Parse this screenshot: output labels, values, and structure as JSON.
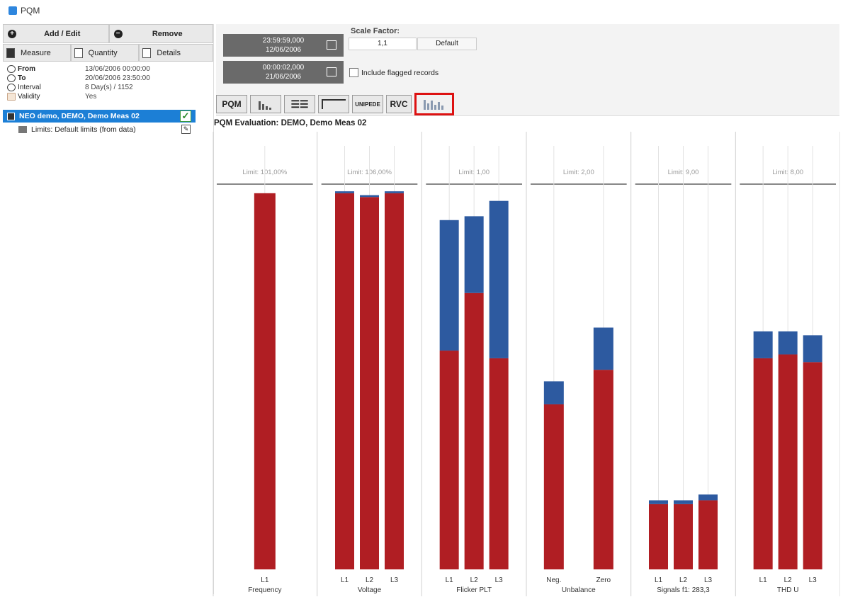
{
  "window": {
    "title": "PQM"
  },
  "left": {
    "add_label": "Add / Edit",
    "remove_label": "Remove",
    "tabs": [
      "Measure",
      "Quantity",
      "Details"
    ],
    "info": [
      {
        "key": "From",
        "value": "13/06/2006 00:00:00",
        "bold": true
      },
      {
        "key": "To",
        "value": "20/06/2006 23:50:00",
        "bold": true
      },
      {
        "key": "Interval",
        "value": "8 Day(s) / 1152",
        "bold": false
      },
      {
        "key": "Validity",
        "value": "Yes",
        "bold": false
      }
    ],
    "measurement": "NEO demo, DEMO, Demo Meas 02",
    "limits": "Limits: Default limits (from data)"
  },
  "controls": {
    "date1_time": "23:59:59,000",
    "date1_date": "12/06/2006",
    "date2_time": "00:00:02,000",
    "date2_date": "21/06/2006",
    "scale_label": "Scale Factor:",
    "scale_value": "1,1",
    "default_label": "Default",
    "include_label": "Include flagged records"
  },
  "toolbar": {
    "pqm": "PQM",
    "unipede": "UNIPEDE",
    "rvc": "RVC"
  },
  "chart_title": "PQM Evaluation: DEMO, Demo Meas 02",
  "chart_data": {
    "type": "bar",
    "stacked": true,
    "colors": {
      "red": "#b01e23",
      "blue": "#2d5aa0"
    },
    "groups": [
      {
        "name": "Frequency",
        "limit": "Limit: 101,00%",
        "bars": [
          {
            "label": "L1",
            "red": 98,
            "blue": 0
          }
        ]
      },
      {
        "name": "Voltage",
        "limit": "Limit: 106,00%",
        "bars": [
          {
            "label": "L1",
            "red": 98,
            "blue": 0.5
          },
          {
            "label": "L2",
            "red": 97,
            "blue": 0.5
          },
          {
            "label": "L3",
            "red": 98,
            "blue": 0.5
          }
        ]
      },
      {
        "name": "Flicker PLT",
        "limit": "Limit: 1,00",
        "bars": [
          {
            "label": "L1",
            "red": 57,
            "blue": 34
          },
          {
            "label": "L2",
            "red": 72,
            "blue": 20
          },
          {
            "label": "L3",
            "red": 55,
            "blue": 41
          }
        ]
      },
      {
        "name": "Unbalance",
        "limit": "Limit: 2,00",
        "bars": [
          {
            "label": "Neg.",
            "red": 43,
            "blue": 6
          },
          {
            "label": "Zero",
            "red": 52,
            "blue": 11
          }
        ]
      },
      {
        "name": "Signals f1: 283,3",
        "limit": "Limit: 9,00",
        "bars": [
          {
            "label": "L1",
            "red": 17,
            "blue": 1
          },
          {
            "label": "L2",
            "red": 17,
            "blue": 1
          },
          {
            "label": "L3",
            "red": 18,
            "blue": 1.5
          }
        ]
      },
      {
        "name": "THD U",
        "limit": "Limit: 8,00",
        "bars": [
          {
            "label": "L1",
            "red": 55,
            "blue": 7
          },
          {
            "label": "L2",
            "red": 56,
            "blue": 6
          },
          {
            "label": "L3",
            "red": 54,
            "blue": 7
          }
        ]
      }
    ],
    "ylim": [
      0,
      100
    ]
  }
}
